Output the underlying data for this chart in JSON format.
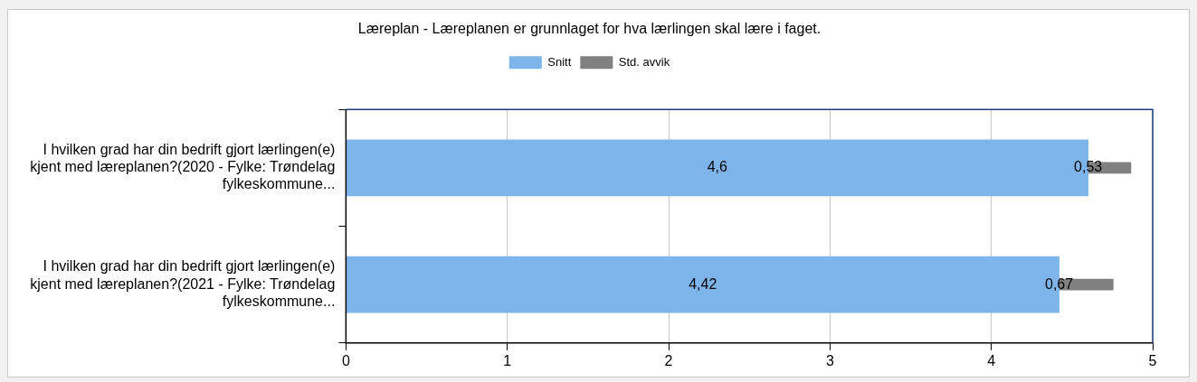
{
  "chart_data": {
    "type": "bar",
    "orientation": "horizontal",
    "title": "Læreplan - Læreplanen er grunnlaget for hva lærlingen skal lære i faget.",
    "categories": [
      "I hvilken grad har din bedrift gjort lærlingen(e) kjent med læreplanen?(2020 - Fylke: Trøndelag fylkeskommune...",
      "I hvilken grad har din bedrift gjort lærlingen(e) kjent med læreplanen?(2021 - Fylke: Trøndelag fylkeskommune..."
    ],
    "series": [
      {
        "name": "Snitt",
        "color": "#7db5eb",
        "values": [
          4.6,
          4.42
        ],
        "value_labels": [
          "4,6",
          "4,42"
        ]
      },
      {
        "name": "Std. avvik",
        "color": "#808080",
        "values": [
          0.53,
          0.67
        ],
        "base": [
          4.335,
          4.085
        ],
        "value_labels": [
          "0,53",
          "0,67"
        ]
      }
    ],
    "xlim": [
      0,
      5
    ],
    "xticks": [
      0,
      1,
      2,
      3,
      4,
      5
    ],
    "grid": "x",
    "legend": "top"
  }
}
